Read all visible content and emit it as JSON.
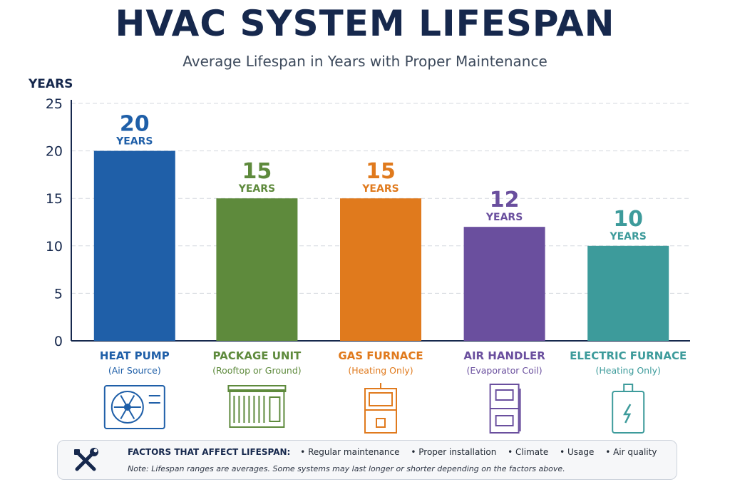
{
  "chart_data": {
    "type": "bar",
    "title": "HVAC SYSTEM LIFESPAN",
    "subtitle": "Average Lifespan in Years with Proper Maintenance",
    "ylabel": "YEARS",
    "ylim": [
      0,
      25
    ],
    "yticks": [
      0,
      5,
      10,
      15,
      20,
      25
    ],
    "grid": true,
    "value_unit": "YEARS",
    "categories": [
      "HEAT PUMP",
      "PACKAGE UNIT",
      "GAS FURNACE",
      "AIR HANDLER",
      "ELECTRIC FURNACE"
    ],
    "category_notes": [
      "(Air Source)",
      "(Rooftop or Ground)",
      "(Heating Only)",
      "(Evaporator Coil)",
      "(Heating Only)"
    ],
    "values": [
      20,
      15,
      15,
      12,
      10
    ],
    "colors": [
      "#1f5fa8",
      "#5e8a3c",
      "#e07a1d",
      "#6a4f9e",
      "#3d9b9b"
    ],
    "icons": [
      "heat-pump-icon",
      "package-unit-icon",
      "gas-furnace-icon",
      "air-handler-icon",
      "electric-furnace-icon"
    ]
  },
  "footer": {
    "heading": "FACTORS THAT AFFECT LIFESPAN:",
    "factors": [
      "Regular maintenance",
      "Proper installation",
      "Climate",
      "Usage",
      "Air quality"
    ],
    "note": "Note: Lifespan ranges are averages. Some systems may last longer or shorter depending on the factors above.",
    "icon": "tools-icon"
  }
}
